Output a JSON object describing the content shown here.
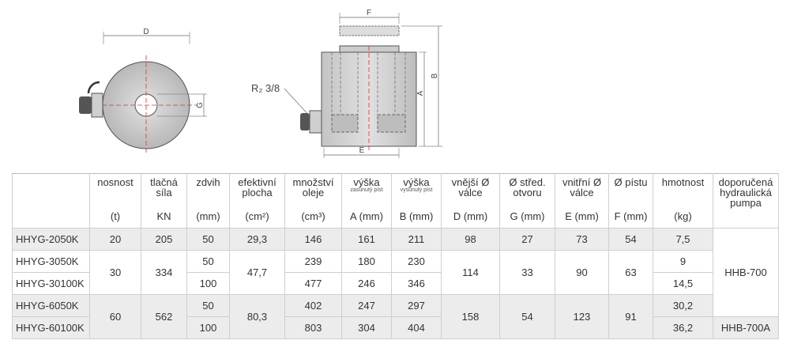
{
  "drawing": {
    "labels": {
      "d": "D",
      "g": "G",
      "f": "F",
      "b": "B",
      "a": "A",
      "e": "E",
      "thread": "R₂ 3/8"
    }
  },
  "table": {
    "header": [
      {
        "title": "nosnost",
        "unit": "(t)"
      },
      {
        "title": "tlačná síla",
        "unit": "KN"
      },
      {
        "title": "zdvih",
        "unit": "(mm)"
      },
      {
        "title": "efektivní plocha",
        "unit": "(cm²)"
      },
      {
        "title": "množství oleje",
        "unit": "(cm³)"
      },
      {
        "title": "výška",
        "note": "zasunutý píst",
        "unit": "A (mm)"
      },
      {
        "title": "výška",
        "note": "vysunutý píst",
        "unit": "B (mm)"
      },
      {
        "title": "vnější Ø válce",
        "unit": "D (mm)"
      },
      {
        "title": "Ø střed. otvoru",
        "unit": "G (mm)"
      },
      {
        "title": "vnitřní Ø válce",
        "unit": "E (mm)"
      },
      {
        "title": "Ø pístu",
        "unit": "F (mm)"
      },
      {
        "title": "hmotnost",
        "unit": "(kg)"
      },
      {
        "title": "doporučená hydraulická pumpa"
      }
    ],
    "rows": [
      [
        "HHYG-2050K",
        "20",
        "205",
        "50",
        "29,3",
        "146",
        "161",
        "211",
        "98",
        "27",
        "73",
        "54",
        "7,5",
        "HHB-700"
      ],
      [
        "HHYG-3050K",
        "30",
        "334",
        "50",
        "47,7",
        "239",
        "180",
        "230",
        "114",
        "33",
        "90",
        "63",
        "9"
      ],
      [
        "HHYG-30100K",
        "100",
        "477",
        "246",
        "346",
        "14,5"
      ],
      [
        "HHYG-6050K",
        "60",
        "562",
        "50",
        "80,3",
        "402",
        "247",
        "297",
        "158",
        "54",
        "123",
        "91",
        "30,2"
      ],
      [
        "HHYG-60100K",
        "100",
        "803",
        "304",
        "404",
        "36,2",
        "HHB-700A"
      ]
    ]
  }
}
